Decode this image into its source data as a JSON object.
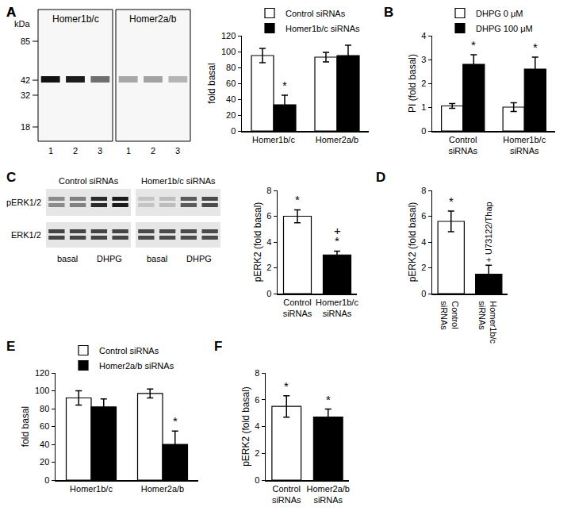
{
  "chart_data": [
    {
      "panel": "A",
      "type": "bar",
      "y_label": "fold basal",
      "categories": [
        "Homer1b/c",
        "Homer2a/b"
      ],
      "series": [
        {
          "name": "Control siRNAs",
          "color": "#ffffff",
          "values": [
            95,
            93
          ],
          "errors": [
            9,
            6
          ]
        },
        {
          "name": "Homer1b/c siRNAs",
          "color": "#000000",
          "values": [
            33,
            95
          ],
          "errors": [
            12,
            13
          ]
        }
      ],
      "ylim": [
        0,
        120
      ],
      "yticks": [
        0,
        20,
        40,
        60,
        80,
        100,
        120
      ],
      "grid": false,
      "legend": "top",
      "annotations": [
        {
          "text": "*",
          "category": "Homer1b/c",
          "series": "Homer1b/c siRNAs"
        }
      ]
    },
    {
      "panel": "B",
      "type": "bar",
      "y_label": "PI (fold basal)",
      "categories": [
        "Control siRNAs",
        "Homer1b/c siRNAs"
      ],
      "series": [
        {
          "name": "DHPG 0 μM",
          "color": "#ffffff",
          "values": [
            1.05,
            1.0
          ],
          "errors": [
            0.1,
            0.18
          ]
        },
        {
          "name": "DHPG 100 μM",
          "color": "#000000",
          "values": [
            2.8,
            2.6
          ],
          "errors": [
            0.4,
            0.5
          ]
        }
      ],
      "ylim": [
        0,
        4
      ],
      "yticks": [
        0,
        1,
        2,
        3,
        4
      ],
      "grid": false,
      "legend": "top",
      "annotations": [
        {
          "text": "*",
          "category": "Control siRNAs",
          "series": "DHPG 100 μM"
        },
        {
          "text": "*",
          "category": "Homer1b/c siRNAs",
          "series": "DHPG 100 μM"
        }
      ]
    },
    {
      "panel": "C",
      "type": "bar",
      "y_label": "pERK2 (fold basal)",
      "categories": [
        "Control siRNAs",
        "Homer1b/c siRNAs"
      ],
      "values": [
        6.0,
        3.0
      ],
      "errors": [
        0.5,
        0.3
      ],
      "colors": [
        "#ffffff",
        "#000000"
      ],
      "ylim": [
        0,
        8
      ],
      "yticks": [
        0,
        2,
        4,
        6,
        8
      ],
      "grid": false,
      "annotations": [
        {
          "text": "*",
          "category": "Control siRNAs"
        },
        {
          "text": "*",
          "category": "Homer1b/c siRNAs"
        },
        {
          "text": "+",
          "category": "Homer1b/c siRNAs"
        }
      ]
    },
    {
      "panel": "D",
      "type": "bar",
      "y_label": "pERK2 (fold basal)",
      "categories": [
        "Control siRNAs",
        "Homer1b/c siRNAs"
      ],
      "values": [
        5.6,
        1.5
      ],
      "errors": [
        0.8,
        0.7
      ],
      "colors": [
        "#ffffff",
        "#000000"
      ],
      "ylim": [
        0,
        8
      ],
      "yticks": [
        0,
        2,
        4,
        6,
        8
      ],
      "grid": false,
      "annotations": [
        {
          "text": "*",
          "category": "Control siRNAs"
        },
        {
          "text": "+ U73122/Thap",
          "category": "Homer1b/c siRNAs"
        }
      ]
    },
    {
      "panel": "E",
      "type": "bar",
      "y_label": "fold basal",
      "categories": [
        "Homer1b/c",
        "Homer2a/b"
      ],
      "series": [
        {
          "name": "Control siRNAs",
          "color": "#ffffff",
          "values": [
            92,
            97
          ],
          "errors": [
            8,
            5
          ]
        },
        {
          "name": "Homer2a/b siRNAs",
          "color": "#000000",
          "values": [
            82,
            40
          ],
          "errors": [
            9,
            15
          ]
        }
      ],
      "ylim": [
        0,
        120
      ],
      "yticks": [
        0,
        20,
        40,
        60,
        80,
        100,
        120
      ],
      "grid": false,
      "legend": "top",
      "annotations": [
        {
          "text": "*",
          "category": "Homer2a/b",
          "series": "Homer2a/b siRNAs"
        }
      ]
    },
    {
      "panel": "F",
      "type": "bar",
      "y_label": "pERK2 (fold basal)",
      "categories": [
        "Control siRNAs",
        "Homer2a/b siRNAs"
      ],
      "values": [
        5.5,
        4.7
      ],
      "errors": [
        0.8,
        0.6
      ],
      "colors": [
        "#ffffff",
        "#000000"
      ],
      "ylim": [
        0,
        8
      ],
      "yticks": [
        0,
        2,
        4,
        6,
        8
      ],
      "grid": false,
      "annotations": [
        {
          "text": "*",
          "category": "Control siRNAs"
        },
        {
          "text": "*",
          "category": "Homer2a/b siRNAs"
        }
      ]
    }
  ],
  "blots": [
    {
      "panel": "A",
      "unit": "kDa",
      "markers": [
        85,
        42,
        32,
        18
      ],
      "membranes": [
        {
          "title": "Homer1b/c",
          "lanes": [
            "1",
            "2",
            "3"
          ]
        },
        {
          "title": "Homer2a/b",
          "lanes": [
            "1",
            "2",
            "3"
          ]
        }
      ]
    },
    {
      "panel": "C",
      "rows": [
        "pERK1/2",
        "ERK1/2"
      ],
      "groups": [
        {
          "title": "Control siRNAs",
          "conditions": [
            "basal",
            "DHPG"
          ]
        },
        {
          "title": "Homer1b/c siRNAs",
          "conditions": [
            "basal",
            "DHPG"
          ]
        }
      ]
    }
  ]
}
